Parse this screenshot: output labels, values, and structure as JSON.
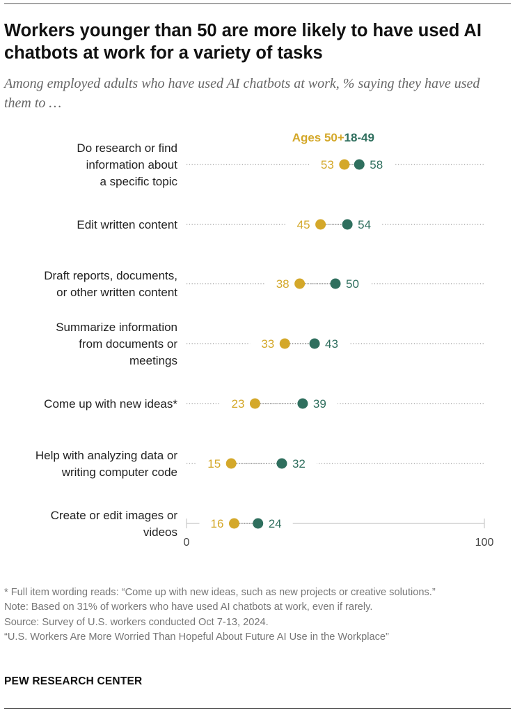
{
  "header": {
    "title": "Workers younger than 50 are more likely to have used AI chatbots at work for a variety of tasks",
    "subtitle": "Among employed adults who have used AI chatbots at work, % saying they have used them to …"
  },
  "chart_data": {
    "type": "scatter",
    "subtype": "dot-plot",
    "xlim": [
      0,
      100
    ],
    "x_ticks": [
      "0",
      "100"
    ],
    "grid": false,
    "legend_position": "top",
    "categories": [
      [
        "Do research or find",
        "information about",
        "a specific topic"
      ],
      [
        "Edit written content"
      ],
      [
        "Draft reports, documents,",
        "or other written content"
      ],
      [
        "Summarize information",
        "from documents or",
        "meetings"
      ],
      [
        "Come up with new ideas*"
      ],
      [
        "Help with analyzing data or",
        "writing computer code"
      ],
      [
        "Create or edit images or",
        "videos"
      ]
    ],
    "series": [
      {
        "name": "Ages 50+",
        "color": "#d4a82a",
        "values": [
          53,
          45,
          38,
          33,
          23,
          15,
          16
        ]
      },
      {
        "name": "18-49",
        "color": "#2f6f5e",
        "values": [
          58,
          54,
          50,
          43,
          39,
          32,
          24
        ]
      }
    ]
  },
  "footer": {
    "notes": [
      "* Full item wording reads: “Come up with new ideas, such as new projects or creative solutions.”",
      "Note: Based on 31% of workers who have used AI chatbots at work, even if rarely.",
      "Source: Survey of U.S. workers conducted Oct 7-13, 2024.",
      "“U.S. Workers Are More Worried Than Hopeful About Future AI Use in the Workplace”"
    ],
    "org": "PEW RESEARCH CENTER"
  }
}
